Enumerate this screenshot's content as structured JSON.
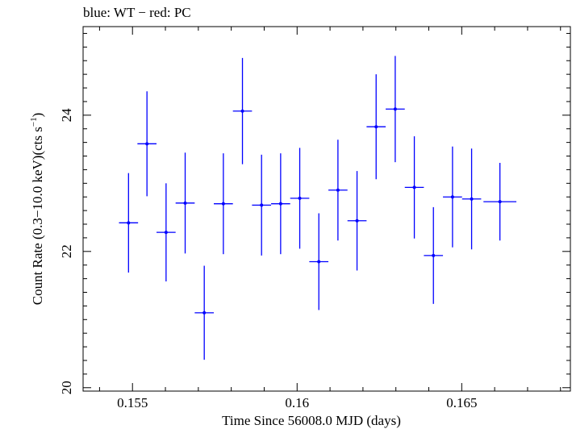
{
  "chart_data": {
    "type": "scatter",
    "title": "blue: WT − red: PC",
    "xlabel": "Time Since 56008.0 MJD (days)",
    "ylabel_main": "Count Rate (0.3−10.0 keV)(cts s",
    "ylabel_sup": "−1",
    "ylabel_end": ")",
    "xlim": [
      0.1535,
      0.1683
    ],
    "ylim": [
      19.95,
      25.3
    ],
    "xticks": [
      0.155,
      0.16,
      0.165
    ],
    "xtick_labels": [
      "0.155",
      "0.16",
      "0.165"
    ],
    "yticks": [
      20,
      22,
      24
    ],
    "ytick_labels": [
      "20",
      "22",
      "24"
    ],
    "series": [
      {
        "color": "#0000ff",
        "points": [
          {
            "x": 0.15488,
            "xerr": 0.00029,
            "y": 22.42,
            "yerr": 0.73
          },
          {
            "x": 0.15544,
            "xerr": 0.00029,
            "y": 23.58,
            "yerr": 0.77
          },
          {
            "x": 0.15602,
            "xerr": 0.00029,
            "y": 22.28,
            "yerr": 0.72
          },
          {
            "x": 0.1566,
            "xerr": 0.00029,
            "y": 22.71,
            "yerr": 0.74
          },
          {
            "x": 0.15718,
            "xerr": 0.00029,
            "y": 21.1,
            "yerr": 0.69
          },
          {
            "x": 0.15776,
            "xerr": 0.00029,
            "y": 22.7,
            "yerr": 0.74
          },
          {
            "x": 0.15834,
            "xerr": 0.00029,
            "y": 24.06,
            "yerr": 0.78
          },
          {
            "x": 0.15892,
            "xerr": 0.00029,
            "y": 22.68,
            "yerr": 0.74
          },
          {
            "x": 0.1595,
            "xerr": 0.00029,
            "y": 22.7,
            "yerr": 0.74
          },
          {
            "x": 0.16008,
            "xerr": 0.00029,
            "y": 22.78,
            "yerr": 0.74
          },
          {
            "x": 0.16066,
            "xerr": 0.00029,
            "y": 21.85,
            "yerr": 0.71
          },
          {
            "x": 0.16124,
            "xerr": 0.00029,
            "y": 22.9,
            "yerr": 0.74
          },
          {
            "x": 0.16182,
            "xerr": 0.00029,
            "y": 22.45,
            "yerr": 0.73
          },
          {
            "x": 0.1624,
            "xerr": 0.00029,
            "y": 23.83,
            "yerr": 0.77
          },
          {
            "x": 0.16298,
            "xerr": 0.00029,
            "y": 24.09,
            "yerr": 0.78
          },
          {
            "x": 0.16356,
            "xerr": 0.00029,
            "y": 22.94,
            "yerr": 0.75
          },
          {
            "x": 0.16414,
            "xerr": 0.00029,
            "y": 21.94,
            "yerr": 0.71
          },
          {
            "x": 0.16472,
            "xerr": 0.00029,
            "y": 22.8,
            "yerr": 0.74
          },
          {
            "x": 0.1653,
            "xerr": 0.00029,
            "y": 22.77,
            "yerr": 0.74
          },
          {
            "x": 0.16616,
            "xerr": 0.0005,
            "y": 22.73,
            "yerr": 0.57
          }
        ]
      }
    ]
  }
}
